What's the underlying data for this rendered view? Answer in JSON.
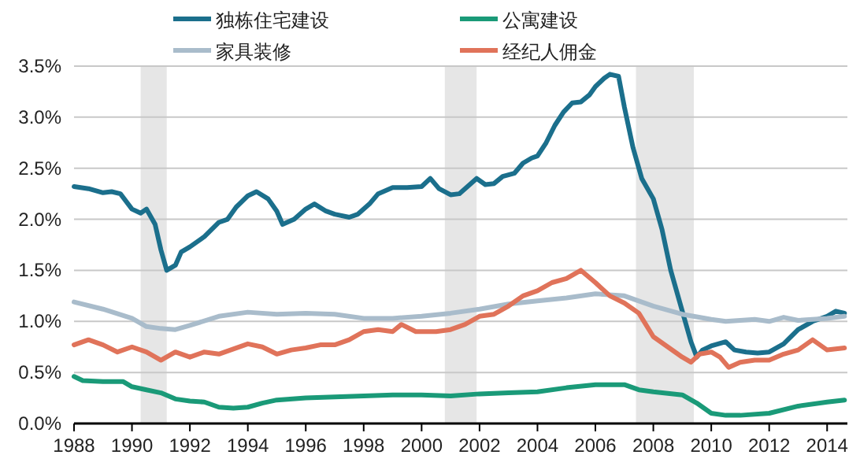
{
  "chart_data": {
    "type": "line",
    "series": [
      {
        "name": "独栋住宅建设",
        "color": "#1b6f8c",
        "x": [
          1988,
          1988.5,
          1989,
          1989.3,
          1989.6,
          1990,
          1990.3,
          1990.5,
          1990.8,
          1991,
          1991.2,
          1991.5,
          1991.7,
          1992,
          1992.5,
          1993,
          1993.3,
          1993.6,
          1994,
          1994.3,
          1994.7,
          1995,
          1995.2,
          1995.6,
          1996,
          1996.3,
          1996.7,
          1997,
          1997.5,
          1997.8,
          1998.2,
          1998.5,
          1999,
          1999.5,
          2000,
          2000.3,
          2000.6,
          2001,
          2001.3,
          2001.7,
          2001.9,
          2002.2,
          2002.5,
          2002.8,
          2003.2,
          2003.5,
          2003.8,
          2004,
          2004.3,
          2004.6,
          2004.9,
          2005.2,
          2005.5,
          2005.8,
          2006,
          2006.3,
          2006.5,
          2006.8,
          2007,
          2007.3,
          2007.6,
          2008,
          2008.3,
          2008.6,
          2009,
          2009.3,
          2009.5,
          2009.7,
          2010,
          2010.5,
          2010.8,
          2011.2,
          2011.6,
          2012,
          2012.5,
          2013,
          2013.5,
          2014,
          2014.3,
          2014.6
        ],
        "values": [
          2.32,
          2.3,
          2.26,
          2.27,
          2.25,
          2.1,
          2.06,
          2.1,
          1.95,
          1.7,
          1.5,
          1.55,
          1.68,
          1.73,
          1.83,
          1.97,
          2.0,
          2.12,
          2.23,
          2.27,
          2.2,
          2.08,
          1.95,
          2.0,
          2.1,
          2.15,
          2.08,
          2.05,
          2.02,
          2.05,
          2.15,
          2.25,
          2.31,
          2.31,
          2.32,
          2.4,
          2.3,
          2.24,
          2.25,
          2.35,
          2.4,
          2.34,
          2.35,
          2.42,
          2.45,
          2.55,
          2.6,
          2.62,
          2.75,
          2.92,
          3.05,
          3.14,
          3.15,
          3.22,
          3.3,
          3.38,
          3.42,
          3.4,
          3.1,
          2.7,
          2.4,
          2.2,
          1.9,
          1.5,
          1.1,
          0.8,
          0.65,
          0.72,
          0.76,
          0.8,
          0.72,
          0.7,
          0.69,
          0.7,
          0.78,
          0.92,
          1.0,
          1.05,
          1.1,
          1.08
        ]
      },
      {
        "name": "公寓建设",
        "color": "#1a9a78",
        "x": [
          1988,
          1988.3,
          1989,
          1989.7,
          1990,
          1990.5,
          1991,
          1991.5,
          1992,
          1992.5,
          1993,
          1993.5,
          1994,
          1994.5,
          1995,
          1996,
          1997,
          1998,
          1999,
          2000,
          2001,
          2002,
          2003,
          2004,
          2005,
          2006,
          2007,
          2007.5,
          2008,
          2009,
          2009.5,
          2010,
          2010.5,
          2011,
          2012,
          2013,
          2014,
          2014.6
        ],
        "values": [
          0.46,
          0.42,
          0.41,
          0.41,
          0.36,
          0.33,
          0.3,
          0.24,
          0.22,
          0.21,
          0.16,
          0.15,
          0.16,
          0.2,
          0.23,
          0.25,
          0.26,
          0.27,
          0.28,
          0.28,
          0.27,
          0.29,
          0.3,
          0.31,
          0.35,
          0.38,
          0.38,
          0.33,
          0.31,
          0.28,
          0.2,
          0.1,
          0.08,
          0.08,
          0.1,
          0.17,
          0.21,
          0.23
        ]
      },
      {
        "name": "家具装修",
        "color": "#a9bccb",
        "x": [
          1988,
          1989,
          1990,
          1990.5,
          1991,
          1991.5,
          1992,
          1993,
          1994,
          1995,
          1996,
          1997,
          1998,
          1999,
          2000,
          2001,
          2002,
          2003,
          2004,
          2005,
          2006,
          2007,
          2008,
          2009,
          2010,
          2010.5,
          2011,
          2011.5,
          2012,
          2012.5,
          2013,
          2014,
          2014.6
        ],
        "values": [
          1.19,
          1.12,
          1.03,
          0.95,
          0.93,
          0.92,
          0.96,
          1.05,
          1.09,
          1.07,
          1.08,
          1.07,
          1.03,
          1.03,
          1.05,
          1.08,
          1.12,
          1.17,
          1.2,
          1.23,
          1.27,
          1.25,
          1.15,
          1.07,
          1.02,
          1.0,
          1.01,
          1.02,
          1.0,
          1.04,
          1.01,
          1.03,
          1.05
        ]
      },
      {
        "name": "经纪人佣金",
        "color": "#e0735a",
        "x": [
          1988,
          1988.5,
          1989,
          1989.5,
          1990,
          1990.5,
          1991,
          1991.5,
          1992,
          1992.5,
          1993,
          1994,
          1994.5,
          1995,
          1995.5,
          1996,
          1996.5,
          1997,
          1997.5,
          1998,
          1998.5,
          1999,
          1999.3,
          1999.8,
          2000.5,
          2001,
          2001.5,
          2002,
          2002.5,
          2003,
          2003.5,
          2004,
          2004.5,
          2005,
          2005.5,
          2006,
          2006.5,
          2007,
          2007.5,
          2008,
          2008.5,
          2009,
          2009.3,
          2009.6,
          2010,
          2010.3,
          2010.6,
          2011,
          2011.5,
          2012,
          2012.5,
          2013,
          2013.5,
          2014,
          2014.6
        ],
        "values": [
          0.77,
          0.82,
          0.77,
          0.7,
          0.75,
          0.7,
          0.62,
          0.7,
          0.65,
          0.7,
          0.68,
          0.78,
          0.75,
          0.68,
          0.72,
          0.74,
          0.77,
          0.77,
          0.82,
          0.9,
          0.92,
          0.9,
          0.97,
          0.9,
          0.9,
          0.92,
          0.97,
          1.05,
          1.07,
          1.15,
          1.25,
          1.3,
          1.38,
          1.42,
          1.5,
          1.38,
          1.25,
          1.18,
          1.08,
          0.85,
          0.75,
          0.65,
          0.6,
          0.68,
          0.7,
          0.65,
          0.55,
          0.6,
          0.62,
          0.62,
          0.68,
          0.72,
          0.82,
          0.72,
          0.74
        ]
      }
    ],
    "bands": [
      {
        "axis": "x",
        "from": 1990.3,
        "to": 1991.2,
        "color": "#e6e6e6"
      },
      {
        "axis": "x",
        "from": 2000.8,
        "to": 2001.9,
        "color": "#e6e6e6"
      },
      {
        "axis": "x",
        "from": 2007.4,
        "to": 2009.4,
        "color": "#e6e6e6"
      }
    ],
    "xlim": [
      1988,
      2014.7
    ],
    "xticks": [
      1988,
      1990,
      1992,
      1994,
      1996,
      1998,
      2000,
      2002,
      2004,
      2006,
      2008,
      2010,
      2012,
      2014
    ],
    "ylim": [
      0,
      3.5
    ],
    "yticks": [
      {
        "value": 0,
        "label": "0.0%"
      },
      {
        "value": 0.5,
        "label": "0.5%"
      },
      {
        "value": 1,
        "label": "1.0%"
      },
      {
        "value": 1.5,
        "label": "1.5%"
      },
      {
        "value": 2,
        "label": "2.0%"
      },
      {
        "value": 2.5,
        "label": "2.5%"
      },
      {
        "value": 3,
        "label": "3.0%"
      },
      {
        "value": 3.5,
        "label": "3.5%"
      }
    ],
    "grid": "y",
    "legend": "top",
    "marker": "none",
    "line_style": "solid"
  }
}
